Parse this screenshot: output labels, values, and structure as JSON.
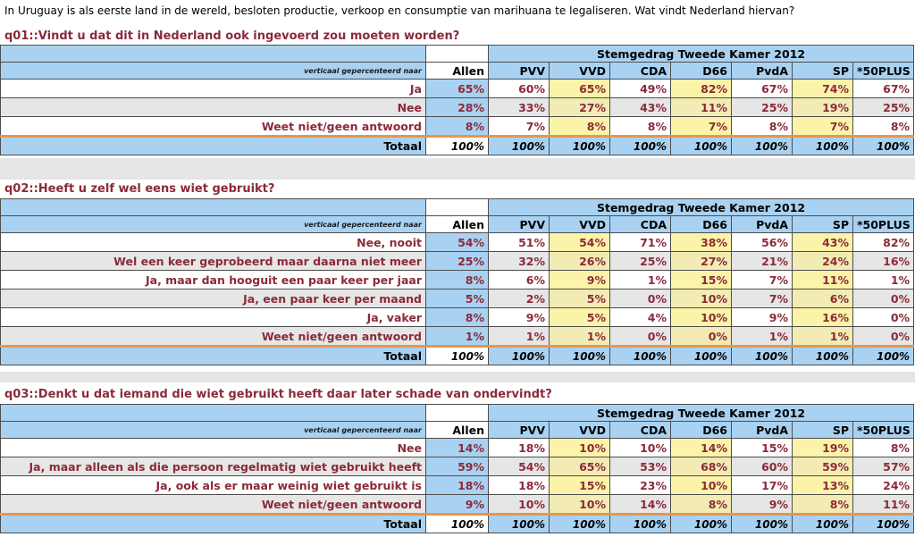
{
  "intro": "In Uruguay is als eerste land in de wereld, besloten productie, verkoop en consumptie van marihuana te legaliseren. Wat vindt Nederland hiervan?",
  "group_header": "Stemgedrag Tweede Kamer 2012",
  "sub_label": "verticaal gepercenteerd naar",
  "columns": [
    "Allen",
    "PVV",
    "VVD",
    "CDA",
    "D66",
    "PvdA",
    "SP",
    "*50PLUS"
  ],
  "total_label": "Totaal",
  "total_values": [
    "100%",
    "100%",
    "100%",
    "100%",
    "100%",
    "100%",
    "100%",
    "100%"
  ],
  "questions": [
    {
      "title": "q01::Vindt u dat dit in Nederland ook ingevoerd zou moeten worden?",
      "rows": [
        {
          "label": "Ja",
          "values": [
            "65%",
            "60%",
            "65%",
            "49%",
            "82%",
            "67%",
            "74%",
            "67%"
          ]
        },
        {
          "label": "Nee",
          "values": [
            "28%",
            "33%",
            "27%",
            "43%",
            "11%",
            "25%",
            "19%",
            "25%"
          ]
        },
        {
          "label": "Weet niet/geen antwoord",
          "values": [
            "8%",
            "7%",
            "8%",
            "8%",
            "7%",
            "8%",
            "7%",
            "8%"
          ]
        }
      ]
    },
    {
      "title": "q02::Heeft u zelf wel eens wiet gebruikt?",
      "rows": [
        {
          "label": "Nee, nooit",
          "values": [
            "54%",
            "51%",
            "54%",
            "71%",
            "38%",
            "56%",
            "43%",
            "82%"
          ]
        },
        {
          "label": "Wel een keer geprobeerd maar daarna niet meer",
          "values": [
            "25%",
            "32%",
            "26%",
            "25%",
            "27%",
            "21%",
            "24%",
            "16%"
          ]
        },
        {
          "label": "Ja, maar dan hooguit een paar keer per jaar",
          "values": [
            "8%",
            "6%",
            "9%",
            "1%",
            "15%",
            "7%",
            "11%",
            "1%"
          ]
        },
        {
          "label": "Ja, een paar keer per maand",
          "values": [
            "5%",
            "2%",
            "5%",
            "0%",
            "10%",
            "7%",
            "6%",
            "0%"
          ]
        },
        {
          "label": "Ja, vaker",
          "values": [
            "8%",
            "9%",
            "5%",
            "4%",
            "10%",
            "9%",
            "16%",
            "0%"
          ]
        },
        {
          "label": "Weet niet/geen antwoord",
          "values": [
            "1%",
            "1%",
            "1%",
            "0%",
            "0%",
            "1%",
            "1%",
            "0%"
          ]
        }
      ]
    },
    {
      "title": "q03::Denkt u dat iemand die wiet gebruikt heeft daar later schade van ondervindt?",
      "rows": [
        {
          "label": "Nee",
          "values": [
            "14%",
            "18%",
            "10%",
            "10%",
            "14%",
            "15%",
            "19%",
            "8%"
          ]
        },
        {
          "label": "Ja, maar alleen als die persoon regelmatig wiet gebruikt heeft",
          "values": [
            "59%",
            "54%",
            "65%",
            "53%",
            "68%",
            "60%",
            "59%",
            "57%"
          ]
        },
        {
          "label": "Ja, ook als er maar weinig wiet gebruikt is",
          "values": [
            "18%",
            "18%",
            "15%",
            "23%",
            "10%",
            "17%",
            "13%",
            "24%"
          ]
        },
        {
          "label": "Weet niet/geen antwoord",
          "values": [
            "9%",
            "10%",
            "10%",
            "14%",
            "8%",
            "9%",
            "8%",
            "11%"
          ]
        }
      ]
    }
  ]
}
